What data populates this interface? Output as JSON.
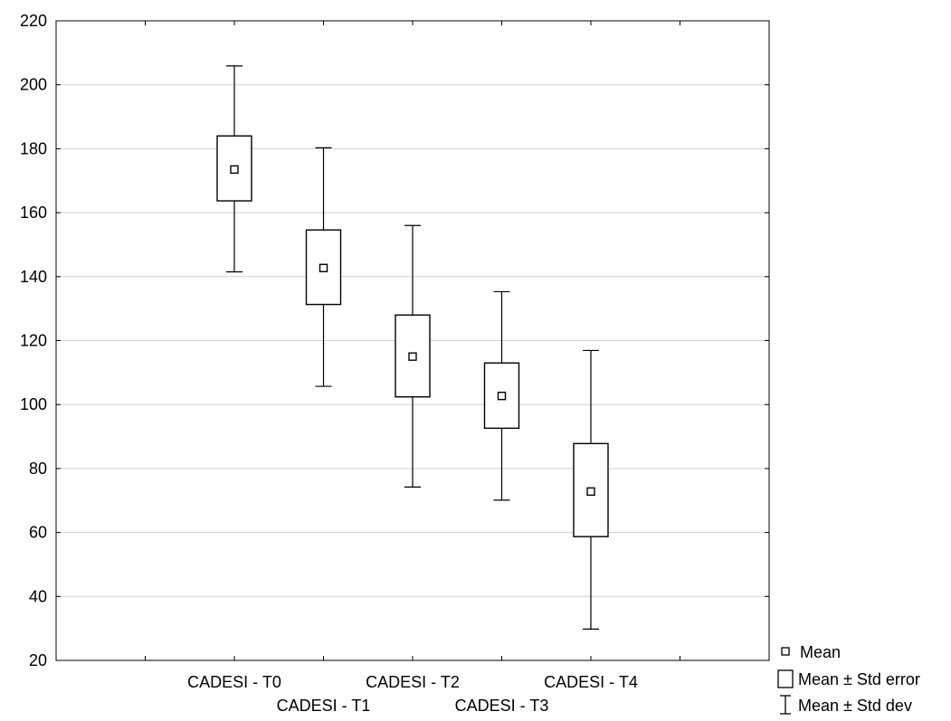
{
  "chart_data": {
    "type": "box",
    "categories": [
      "CADESI - T0",
      "CADESI - T1",
      "CADESI - T2",
      "CADESI - T3",
      "CADESI - T4"
    ],
    "series": [
      {
        "mean": [
          173.5,
          142.7,
          115.0,
          102.7,
          72.8
        ],
        "se_low": [
          163.7,
          131.3,
          102.4,
          92.6,
          58.7
        ],
        "se_high": [
          184.0,
          154.6,
          128.0,
          113.0,
          87.8
        ],
        "sd_low": [
          141.5,
          105.7,
          74.2,
          70.1,
          29.8
        ],
        "sd_high": [
          205.9,
          180.3,
          156.0,
          135.3,
          116.9
        ]
      }
    ],
    "ylim": [
      20,
      220
    ],
    "yticks": [
      20,
      40,
      60,
      80,
      100,
      120,
      140,
      160,
      180,
      200,
      220
    ],
    "grid": true,
    "legend": {
      "placement": "bottom-right",
      "items": [
        "Mean",
        "Mean ± Std error",
        "Mean ± Std dev"
      ]
    },
    "title": "",
    "xlabel": "",
    "ylabel": ""
  }
}
